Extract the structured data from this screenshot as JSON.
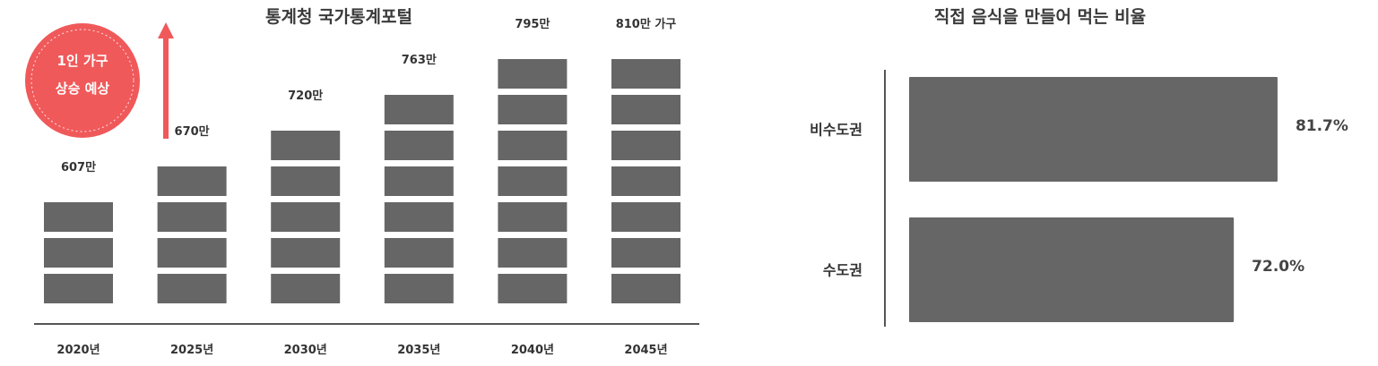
{
  "chart_data": [
    {
      "type": "bar",
      "title": "통계청 국가통계포털",
      "categories": [
        "2020년",
        "2025년",
        "2030년",
        "2035년",
        "2040년",
        "2045년"
      ],
      "values": [
        607,
        670,
        720,
        763,
        795,
        810
      ],
      "data_labels": [
        "607만",
        "670만",
        "720만",
        "763만",
        "795만",
        "810만 가구"
      ],
      "segments": [
        3,
        4,
        5,
        6,
        7,
        7
      ],
      "badge": {
        "line1": "1인 가구",
        "line2": "상승 예상"
      },
      "colors": {
        "bar": "#666666",
        "badge": "#f0595a",
        "arrow": "#f0595a",
        "axis": "#555555"
      }
    },
    {
      "type": "bar",
      "orientation": "horizontal",
      "title": "직접 음식을 만들어 먹는 비율",
      "categories": [
        "비수도권",
        "수도권"
      ],
      "values": [
        81.7,
        72.0
      ],
      "data_labels": [
        "81.7%",
        "72.0%"
      ],
      "unit": "%",
      "colors": {
        "bar": "#666666",
        "axis": "#555555"
      }
    }
  ]
}
